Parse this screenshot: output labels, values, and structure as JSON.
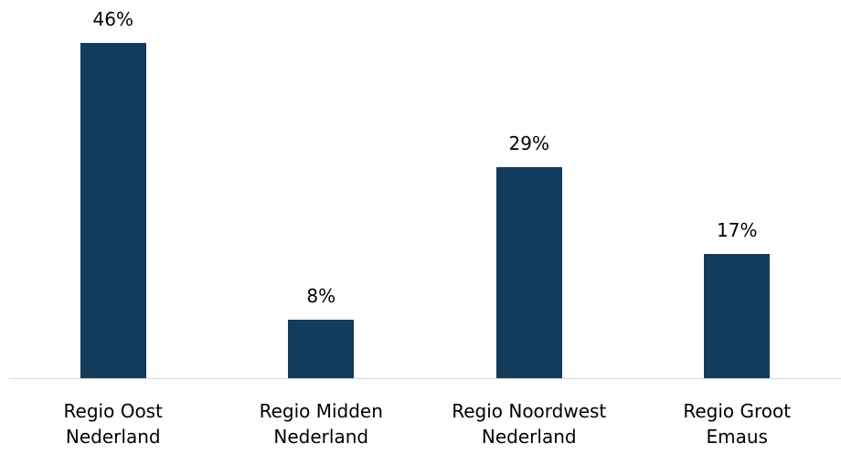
{
  "chart_data": {
    "type": "bar",
    "categories": [
      "Regio Oost\nNederland",
      "Regio Midden\nNederland",
      "Regio Noordwest\nNederland",
      "Regio Groot\nEmaus"
    ],
    "values": [
      46,
      8,
      29,
      17
    ],
    "value_labels": [
      "46%",
      "8%",
      "29%",
      "17%"
    ],
    "color": "#133b5c"
  }
}
